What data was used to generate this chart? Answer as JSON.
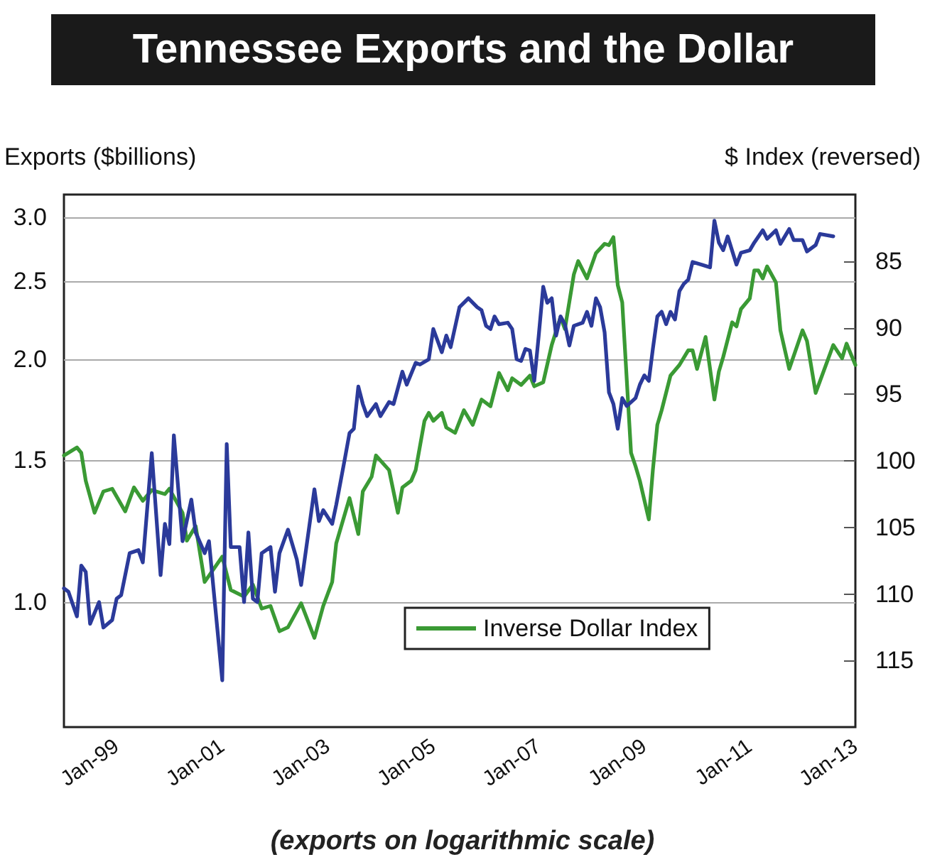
{
  "chart_data": {
    "type": "line",
    "title": "Tennessee Exports and the Dollar",
    "ylabel": "Exports ($billions)",
    "y2label": "$ Index (reversed)",
    "annotations": [
      "(exports on logarithmic scale)"
    ],
    "log": "y",
    "grid": "y",
    "legend": "bottom",
    "marker": "none",
    "line_style": "solid",
    "xlim": [
      "1998-01",
      "2013-01"
    ],
    "xticks": [
      {
        "value": "1999-01",
        "label": "Jan-99"
      },
      {
        "value": "2001-01",
        "label": "Jan-01"
      },
      {
        "value": "2003-01",
        "label": "Jan-03"
      },
      {
        "value": "2005-01",
        "label": "Jan-05"
      },
      {
        "value": "2007-01",
        "label": "Jan-07"
      },
      {
        "value": "2009-01",
        "label": "Jan-09"
      },
      {
        "value": "2011-01",
        "label": "Jan-11"
      },
      {
        "value": "2013-01",
        "label": "Jan-13"
      }
    ],
    "ylim": [
      0.7,
      3.2
    ],
    "yticks": [
      {
        "value": 1,
        "label": "1.0"
      },
      {
        "value": 1.5,
        "label": "1.5"
      },
      {
        "value": 2,
        "label": "2.0"
      },
      {
        "value": 2.5,
        "label": "2.5"
      },
      {
        "value": 3,
        "label": "3.0"
      }
    ],
    "y2lim": [
      120,
      80
    ],
    "y2ticks": [
      85,
      90,
      95,
      100,
      105,
      110,
      115
    ],
    "series": [
      {
        "color": "#2b3a9a",
        "x": [
          "1998-01",
          "1998-02",
          "1998-04",
          "1998-05",
          "1998-06",
          "1998-07",
          "1998-09",
          "1998-10",
          "1998-12",
          "1999-01",
          "1999-02",
          "1999-04",
          "1999-06",
          "1999-07",
          "1999-09",
          "1999-11",
          "1999-12",
          "2000-01",
          "2000-02",
          "2000-04",
          "2000-06",
          "2000-07",
          "2000-09",
          "2000-10",
          "2001-01",
          "2001-02",
          "2001-03",
          "2001-05",
          "2001-06",
          "2001-07",
          "2001-08",
          "2001-09",
          "2001-10",
          "2001-12",
          "2002-01",
          "2002-02",
          "2002-04",
          "2002-06",
          "2002-07",
          "2002-10",
          "2002-11",
          "2002-12",
          "2003-02",
          "2003-03",
          "2003-05",
          "2003-06",
          "2003-07",
          "2003-08",
          "2003-09",
          "2003-10",
          "2003-12",
          "2004-01",
          "2004-03",
          "2004-04",
          "2004-06",
          "2004-07",
          "2004-09",
          "2004-10",
          "2004-12",
          "2005-01",
          "2005-03",
          "2005-04",
          "2005-05",
          "2005-07",
          "2005-09",
          "2005-11",
          "2005-12",
          "2006-01",
          "2006-02",
          "2006-03",
          "2006-04",
          "2006-06",
          "2006-07",
          "2006-08",
          "2006-09",
          "2006-10",
          "2006-11",
          "2006-12",
          "2007-01",
          "2007-02",
          "2007-03",
          "2007-04",
          "2007-05",
          "2007-06",
          "2007-07",
          "2007-08",
          "2007-09",
          "2007-11",
          "2007-12",
          "2008-01",
          "2008-02",
          "2008-03",
          "2008-04",
          "2008-05",
          "2008-06",
          "2008-07",
          "2008-08",
          "2008-09",
          "2008-11",
          "2008-12",
          "2009-01",
          "2009-02",
          "2009-03",
          "2009-04",
          "2009-05",
          "2009-06",
          "2009-07",
          "2009-08",
          "2009-09",
          "2009-10",
          "2009-11",
          "2009-12",
          "2010-02",
          "2010-04",
          "2010-05",
          "2010-06",
          "2010-07",
          "2010-08",
          "2010-10",
          "2010-11",
          "2011-01",
          "2011-02",
          "2011-04",
          "2011-05",
          "2011-07",
          "2011-08",
          "2011-10",
          "2011-11",
          "2012-01",
          "2012-02",
          "2012-04",
          "2012-05",
          "2012-08"
        ],
        "values": [
          1.04,
          1.03,
          0.96,
          1.11,
          1.09,
          0.94,
          1.0,
          0.93,
          0.95,
          1.01,
          1.02,
          1.15,
          1.16,
          1.12,
          1.53,
          1.08,
          1.25,
          1.18,
          1.61,
          1.19,
          1.34,
          1.22,
          1.15,
          1.19,
          0.8,
          1.57,
          1.17,
          1.17,
          1.0,
          1.22,
          1.01,
          1.0,
          1.15,
          1.17,
          1.03,
          1.15,
          1.23,
          1.13,
          1.05,
          1.38,
          1.26,
          1.3,
          1.25,
          1.32,
          1.51,
          1.62,
          1.64,
          1.85,
          1.76,
          1.7,
          1.76,
          1.7,
          1.77,
          1.76,
          1.93,
          1.86,
          1.98,
          1.97,
          2.0,
          2.18,
          2.04,
          2.14,
          2.07,
          2.32,
          2.38,
          2.32,
          2.3,
          2.2,
          2.18,
          2.26,
          2.21,
          2.22,
          2.18,
          2.0,
          1.99,
          2.06,
          2.05,
          1.88,
          2.14,
          2.46,
          2.35,
          2.38,
          2.14,
          2.26,
          2.21,
          2.08,
          2.2,
          2.22,
          2.29,
          2.2,
          2.38,
          2.32,
          2.16,
          1.82,
          1.76,
          1.64,
          1.79,
          1.75,
          1.79,
          1.86,
          1.91,
          1.88,
          2.06,
          2.26,
          2.29,
          2.21,
          2.29,
          2.24,
          2.43,
          2.48,
          2.51,
          2.64,
          2.62,
          2.6,
          2.97,
          2.79,
          2.73,
          2.84,
          2.62,
          2.71,
          2.73,
          2.79,
          2.89,
          2.82,
          2.89,
          2.78,
          2.9,
          2.81,
          2.81,
          2.72,
          2.77,
          2.86,
          2.84
        ]
      },
      {
        "name": "Inverse Dollar Index",
        "color": "#3a9a34",
        "axis": "y2",
        "x": [
          "1998-01",
          "1998-04",
          "1998-05",
          "1998-06",
          "1998-08",
          "1998-10",
          "1998-12",
          "1999-03",
          "1999-05",
          "1999-07",
          "1999-09",
          "1999-12",
          "2000-01",
          "2000-04",
          "2000-05",
          "2000-07",
          "2000-09",
          "2001-01",
          "2001-03",
          "2001-06",
          "2001-08",
          "2001-10",
          "2001-12",
          "2002-02",
          "2002-04",
          "2002-07",
          "2002-10",
          "2002-12",
          "2003-02",
          "2003-03",
          "2003-06",
          "2003-08",
          "2003-09",
          "2003-11",
          "2003-12",
          "2004-03",
          "2004-05",
          "2004-06",
          "2004-08",
          "2004-09",
          "2004-11",
          "2004-12",
          "2005-01",
          "2005-03",
          "2005-04",
          "2005-06",
          "2005-08",
          "2005-10",
          "2005-12",
          "2006-02",
          "2006-04",
          "2006-06",
          "2006-07",
          "2006-09",
          "2006-11",
          "2006-12",
          "2007-02",
          "2007-04",
          "2007-06",
          "2007-07",
          "2007-09",
          "2007-10",
          "2007-12",
          "2008-02",
          "2008-04",
          "2008-05",
          "2008-06",
          "2008-07",
          "2008-08",
          "2008-10",
          "2008-11",
          "2008-12",
          "2009-02",
          "2009-03",
          "2009-04",
          "2009-05",
          "2009-07",
          "2009-09",
          "2009-11",
          "2009-12",
          "2010-01",
          "2010-03",
          "2010-05",
          "2010-06",
          "2010-07",
          "2010-09",
          "2010-10",
          "2010-11",
          "2011-01",
          "2011-02",
          "2011-03",
          "2011-04",
          "2011-05",
          "2011-07",
          "2011-08",
          "2011-10",
          "2012-01",
          "2012-02",
          "2012-04",
          "2012-08",
          "2012-10",
          "2012-11",
          "2013-01"
        ],
        "values": [
          99.6,
          99.0,
          99.4,
          101.5,
          103.9,
          102.3,
          102.1,
          103.8,
          102.0,
          103.0,
          102.2,
          102.5,
          102.1,
          103.9,
          106.0,
          104.9,
          109.1,
          107.2,
          109.7,
          110.2,
          109.3,
          111.1,
          110.9,
          112.8,
          112.5,
          110.7,
          113.3,
          110.9,
          109.1,
          106.2,
          102.8,
          105.5,
          102.3,
          101.2,
          99.6,
          100.7,
          103.9,
          102.0,
          101.5,
          100.7,
          97.0,
          96.4,
          97.0,
          96.4,
          97.5,
          97.9,
          96.2,
          97.3,
          95.4,
          95.9,
          93.4,
          94.7,
          93.8,
          94.3,
          93.6,
          94.4,
          94.1,
          91.3,
          89.2,
          90.1,
          86.0,
          85.0,
          86.3,
          84.4,
          83.7,
          83.8,
          83.2,
          86.8,
          88.1,
          99.4,
          100.4,
          101.5,
          104.4,
          100.7,
          97.3,
          96.2,
          93.6,
          92.8,
          91.7,
          91.7,
          93.1,
          90.7,
          95.4,
          93.3,
          92.2,
          89.6,
          89.9,
          88.6,
          87.8,
          85.7,
          85.7,
          86.3,
          85.4,
          86.6,
          90.2,
          93.1,
          90.2,
          91.0,
          94.9,
          91.3,
          92.3,
          91.2,
          92.8
        ]
      }
    ]
  }
}
